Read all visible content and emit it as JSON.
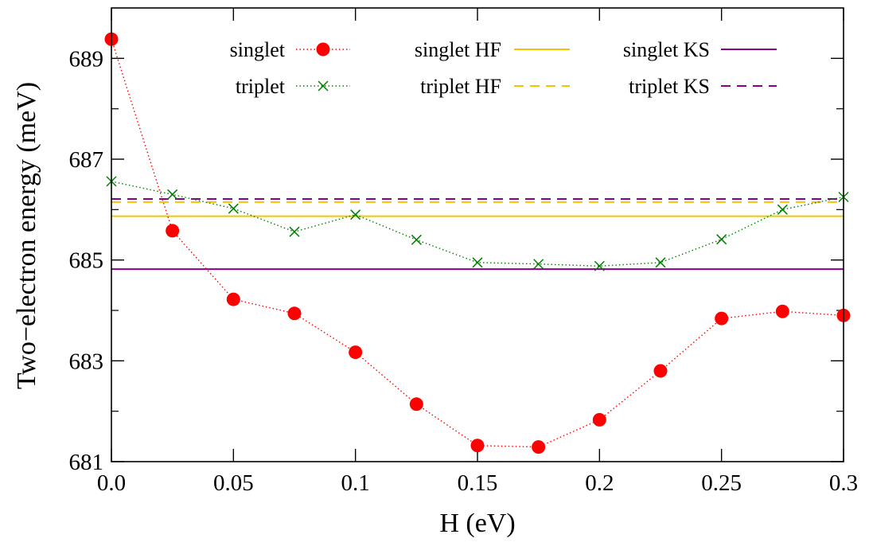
{
  "chart_data": {
    "type": "line",
    "xlabel": "H (eV)",
    "ylabel": "Two−electron energy (meV)",
    "xlim": [
      0,
      0.3
    ],
    "ylim": [
      681,
      690
    ],
    "x_ticks": [
      0,
      0.05,
      0.1,
      0.15,
      0.2,
      0.25,
      0.3
    ],
    "x_tick_labels": [
      "0.0",
      "0.05",
      "0.1",
      "0.15",
      "0.2",
      "0.25",
      "0.3"
    ],
    "y_major_ticks": [
      681,
      683,
      685,
      687,
      689
    ],
    "y_minor_ticks": [
      682,
      684,
      686,
      688
    ],
    "y_tick_labels": [
      "681",
      "683",
      "685",
      "687",
      "689"
    ],
    "grid": false,
    "legend_position": "top",
    "series": [
      {
        "name": "singlet",
        "style": "dotted-markers-circle",
        "color": "#ff0000",
        "x": [
          0,
          0.025,
          0.05,
          0.075,
          0.1,
          0.125,
          0.15,
          0.175,
          0.2,
          0.225,
          0.25,
          0.275,
          0.3
        ],
        "y": [
          689.38,
          685.58,
          684.22,
          683.94,
          683.17,
          682.14,
          681.32,
          681.29,
          681.83,
          682.8,
          683.84,
          683.98,
          683.9
        ]
      },
      {
        "name": "triplet",
        "style": "dotted-markers-x",
        "color": "#008000",
        "x": [
          0,
          0.025,
          0.05,
          0.075,
          0.1,
          0.125,
          0.15,
          0.175,
          0.2,
          0.225,
          0.25,
          0.275,
          0.3
        ],
        "y": [
          686.56,
          686.3,
          686.02,
          685.56,
          685.9,
          685.4,
          684.95,
          684.92,
          684.88,
          684.95,
          685.41,
          686.0,
          686.25
        ]
      },
      {
        "name": "singlet HF",
        "style": "solid-hline",
        "color": "#f2c500",
        "y_value": 685.87
      },
      {
        "name": "triplet HF",
        "style": "dashed-hline",
        "color": "#f2c500",
        "y_value": 686.15
      },
      {
        "name": "singlet KS",
        "style": "solid-hline",
        "color": "#8b008b",
        "y_value": 684.82
      },
      {
        "name": "triplet KS",
        "style": "dashed-hline",
        "color": "#8b008b",
        "y_value": 686.21
      }
    ]
  }
}
